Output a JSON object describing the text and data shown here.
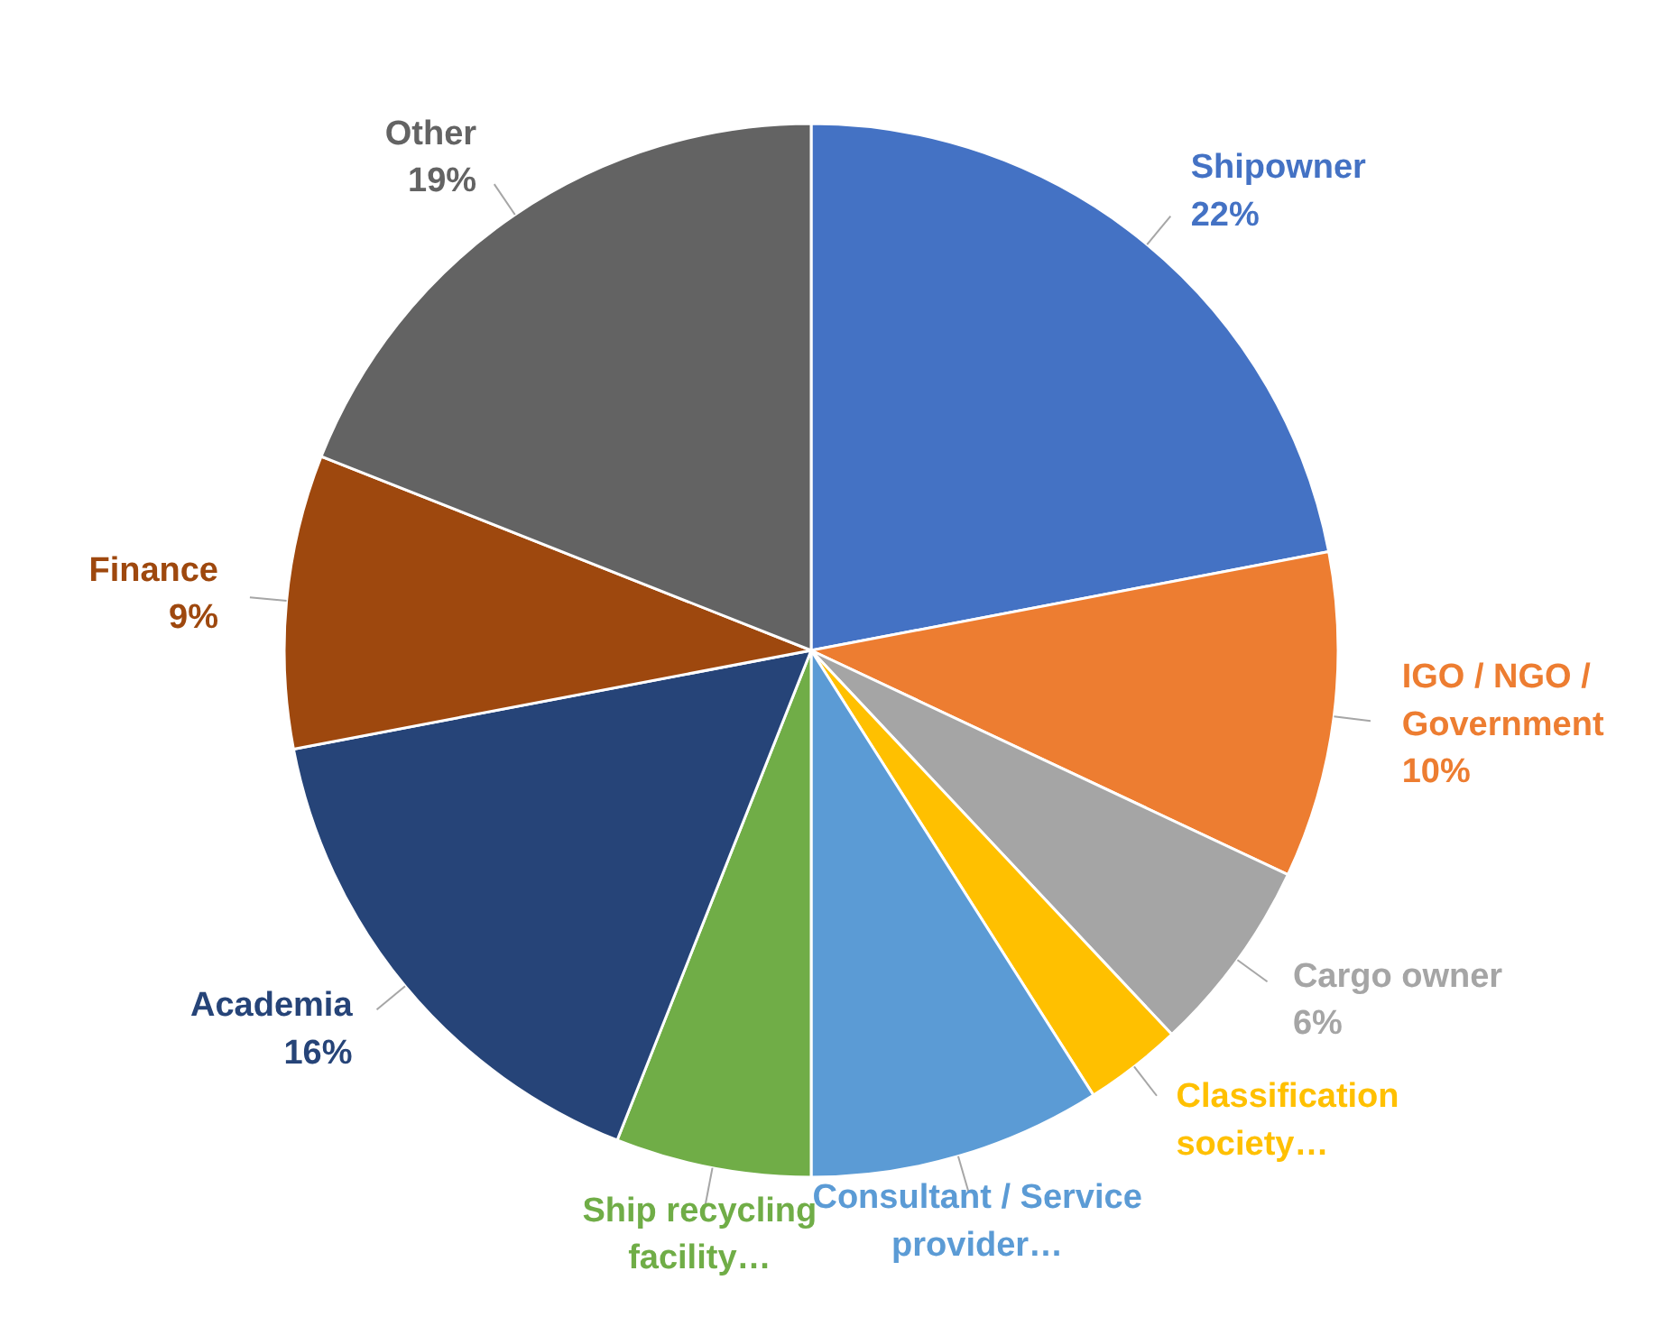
{
  "chart_data": {
    "type": "pie",
    "categories": [
      "Shipowner",
      "IGO / NGO / Government",
      "Cargo owner",
      "Classification society…",
      "Consultant / Service provider…",
      "Ship recycling facility…",
      "Academia",
      "Finance",
      "Other"
    ],
    "values": [
      22,
      10,
      6,
      3,
      9,
      6,
      16,
      9,
      19
    ],
    "colors": [
      "#4472c4",
      "#ed7d31",
      "#a5a5a5",
      "#ffc000",
      "#5b9bd5",
      "#70ad47",
      "#264478",
      "#9e480e",
      "#636363"
    ],
    "value_labels": [
      "22%",
      "10%",
      "6%",
      null,
      null,
      null,
      "16%",
      "9%",
      "19%"
    ]
  }
}
